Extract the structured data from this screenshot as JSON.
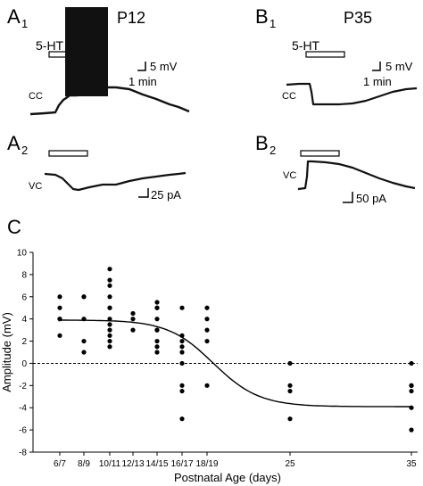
{
  "panels": {
    "A1": {
      "letter": "A",
      "sub": "1",
      "age": "P12",
      "drug": "5-HT",
      "scale_v": "5 mV",
      "scale_t": "1 min",
      "mode": "CC"
    },
    "A2": {
      "letter": "A",
      "sub": "2",
      "mode": "VC",
      "scale_i": "25 pA"
    },
    "B1": {
      "letter": "B",
      "sub": "1",
      "age": "P35",
      "drug": "5-HT",
      "scale_v": "5 mV",
      "scale_t": "1 min",
      "mode": "CC"
    },
    "B2": {
      "letter": "B",
      "sub": "2",
      "mode": "VC",
      "scale_i": "50 pA"
    },
    "C": {
      "letter": "C"
    }
  },
  "chart_data": {
    "type": "scatter",
    "title": "",
    "xlabel": "Postnatal Age (days)",
    "ylabel": "Amplitude (mV)",
    "ylim": [
      -8,
      10
    ],
    "yticks": [
      -8,
      -6,
      -4,
      -2,
      0,
      2,
      4,
      6,
      8,
      10
    ],
    "xticks": [
      {
        "x": 6.5,
        "label": "6/7"
      },
      {
        "x": 8.5,
        "label": "8/9"
      },
      {
        "x": 10.5,
        "label": "10/11"
      },
      {
        "x": 12.5,
        "label": "12/13"
      },
      {
        "x": 14.5,
        "label": "14/15"
      },
      {
        "x": 16.5,
        "label": "16/17"
      },
      {
        "x": 18.5,
        "label": "18/19"
      },
      {
        "x": 25,
        "label": "25"
      },
      {
        "x": 35,
        "label": "35"
      }
    ],
    "zero_line": "dashed",
    "points": [
      {
        "x": 6.5,
        "y": 6
      },
      {
        "x": 6.5,
        "y": 5
      },
      {
        "x": 6.5,
        "y": 4
      },
      {
        "x": 6.5,
        "y": 4
      },
      {
        "x": 6.5,
        "y": 2.5
      },
      {
        "x": 8.5,
        "y": 6
      },
      {
        "x": 8.5,
        "y": 6
      },
      {
        "x": 8.5,
        "y": 4
      },
      {
        "x": 8.5,
        "y": 2
      },
      {
        "x": 8.5,
        "y": 1
      },
      {
        "x": 10.5,
        "y": 8.5
      },
      {
        "x": 10.5,
        "y": 7.5
      },
      {
        "x": 10.5,
        "y": 7
      },
      {
        "x": 10.5,
        "y": 6
      },
      {
        "x": 10.5,
        "y": 5
      },
      {
        "x": 10.5,
        "y": 5
      },
      {
        "x": 10.5,
        "y": 4
      },
      {
        "x": 10.5,
        "y": 3.5
      },
      {
        "x": 10.5,
        "y": 3
      },
      {
        "x": 10.5,
        "y": 2.5
      },
      {
        "x": 10.5,
        "y": 2
      },
      {
        "x": 10.5,
        "y": 1.5
      },
      {
        "x": 12.5,
        "y": 4
      },
      {
        "x": 12.5,
        "y": 3
      },
      {
        "x": 12.5,
        "y": 4.5
      },
      {
        "x": 14.5,
        "y": 5.5
      },
      {
        "x": 14.5,
        "y": 5
      },
      {
        "x": 14.5,
        "y": 5
      },
      {
        "x": 14.5,
        "y": 4
      },
      {
        "x": 14.5,
        "y": 3
      },
      {
        "x": 14.5,
        "y": 3
      },
      {
        "x": 14.5,
        "y": 2
      },
      {
        "x": 14.5,
        "y": 1.5
      },
      {
        "x": 14.5,
        "y": 1
      },
      {
        "x": 16.5,
        "y": 5
      },
      {
        "x": 16.5,
        "y": 2.5
      },
      {
        "x": 16.5,
        "y": 2
      },
      {
        "x": 16.5,
        "y": 1.5
      },
      {
        "x": 16.5,
        "y": 1
      },
      {
        "x": 16.5,
        "y": 0
      },
      {
        "x": 16.5,
        "y": -2
      },
      {
        "x": 16.5,
        "y": -2.5
      },
      {
        "x": 16.5,
        "y": -5
      },
      {
        "x": 18.5,
        "y": 5
      },
      {
        "x": 18.5,
        "y": 4
      },
      {
        "x": 18.5,
        "y": 3
      },
      {
        "x": 18.5,
        "y": 2
      },
      {
        "x": 18.5,
        "y": -2
      },
      {
        "x": 25,
        "y": 0
      },
      {
        "x": 25,
        "y": -2
      },
      {
        "x": 25,
        "y": -2.5
      },
      {
        "x": 25,
        "y": -5
      },
      {
        "x": 35,
        "y": 0
      },
      {
        "x": 35,
        "y": -2
      },
      {
        "x": 35,
        "y": -2
      },
      {
        "x": 35,
        "y": -2
      },
      {
        "x": 35,
        "y": -2.5
      },
      {
        "x": 35,
        "y": -4
      },
      {
        "x": 35,
        "y": -6
      }
    ],
    "fit": {
      "type": "sigmoid",
      "top": 3.9,
      "bottom": -3.9,
      "midpoint": 19.0,
      "slope": 1.8
    }
  }
}
